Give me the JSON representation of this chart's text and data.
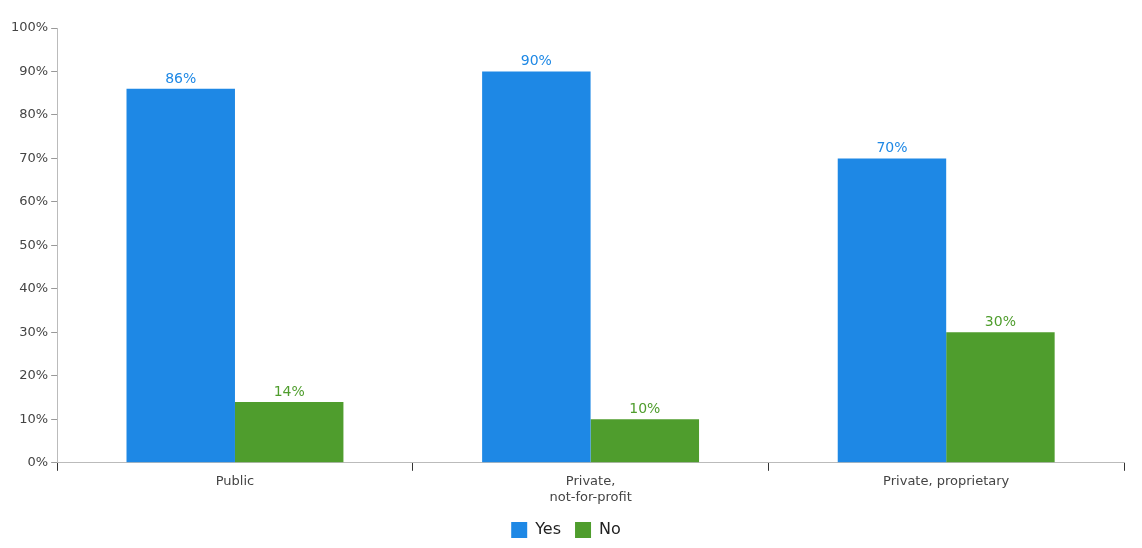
{
  "chart_data": {
    "type": "bar",
    "categories": [
      "Public",
      "Private,\nnot-for-profit",
      "Private, proprietary"
    ],
    "series": [
      {
        "name": "Yes",
        "color": "#1e88e5",
        "values": [
          86,
          90,
          70
        ],
        "value_labels": [
          "86%",
          "90%",
          "70%"
        ]
      },
      {
        "name": "No",
        "color": "#4f9d2d",
        "values": [
          14,
          10,
          30
        ],
        "value_labels": [
          "14%",
          "10%",
          "30%"
        ]
      }
    ],
    "ylim": [
      0,
      100
    ],
    "yticks": [
      {
        "value": 0,
        "label": "0%"
      },
      {
        "value": 10,
        "label": "10%"
      },
      {
        "value": 20,
        "label": "20%"
      },
      {
        "value": 30,
        "label": "30%"
      },
      {
        "value": 40,
        "label": "40%"
      },
      {
        "value": 50,
        "label": "50%"
      },
      {
        "value": 60,
        "label": "60%"
      },
      {
        "value": 70,
        "label": "70%"
      },
      {
        "value": 80,
        "label": "80%"
      },
      {
        "value": 90,
        "label": "90%"
      },
      {
        "value": 100,
        "label": "100%"
      }
    ],
    "grid": false,
    "legend": "bottom"
  }
}
